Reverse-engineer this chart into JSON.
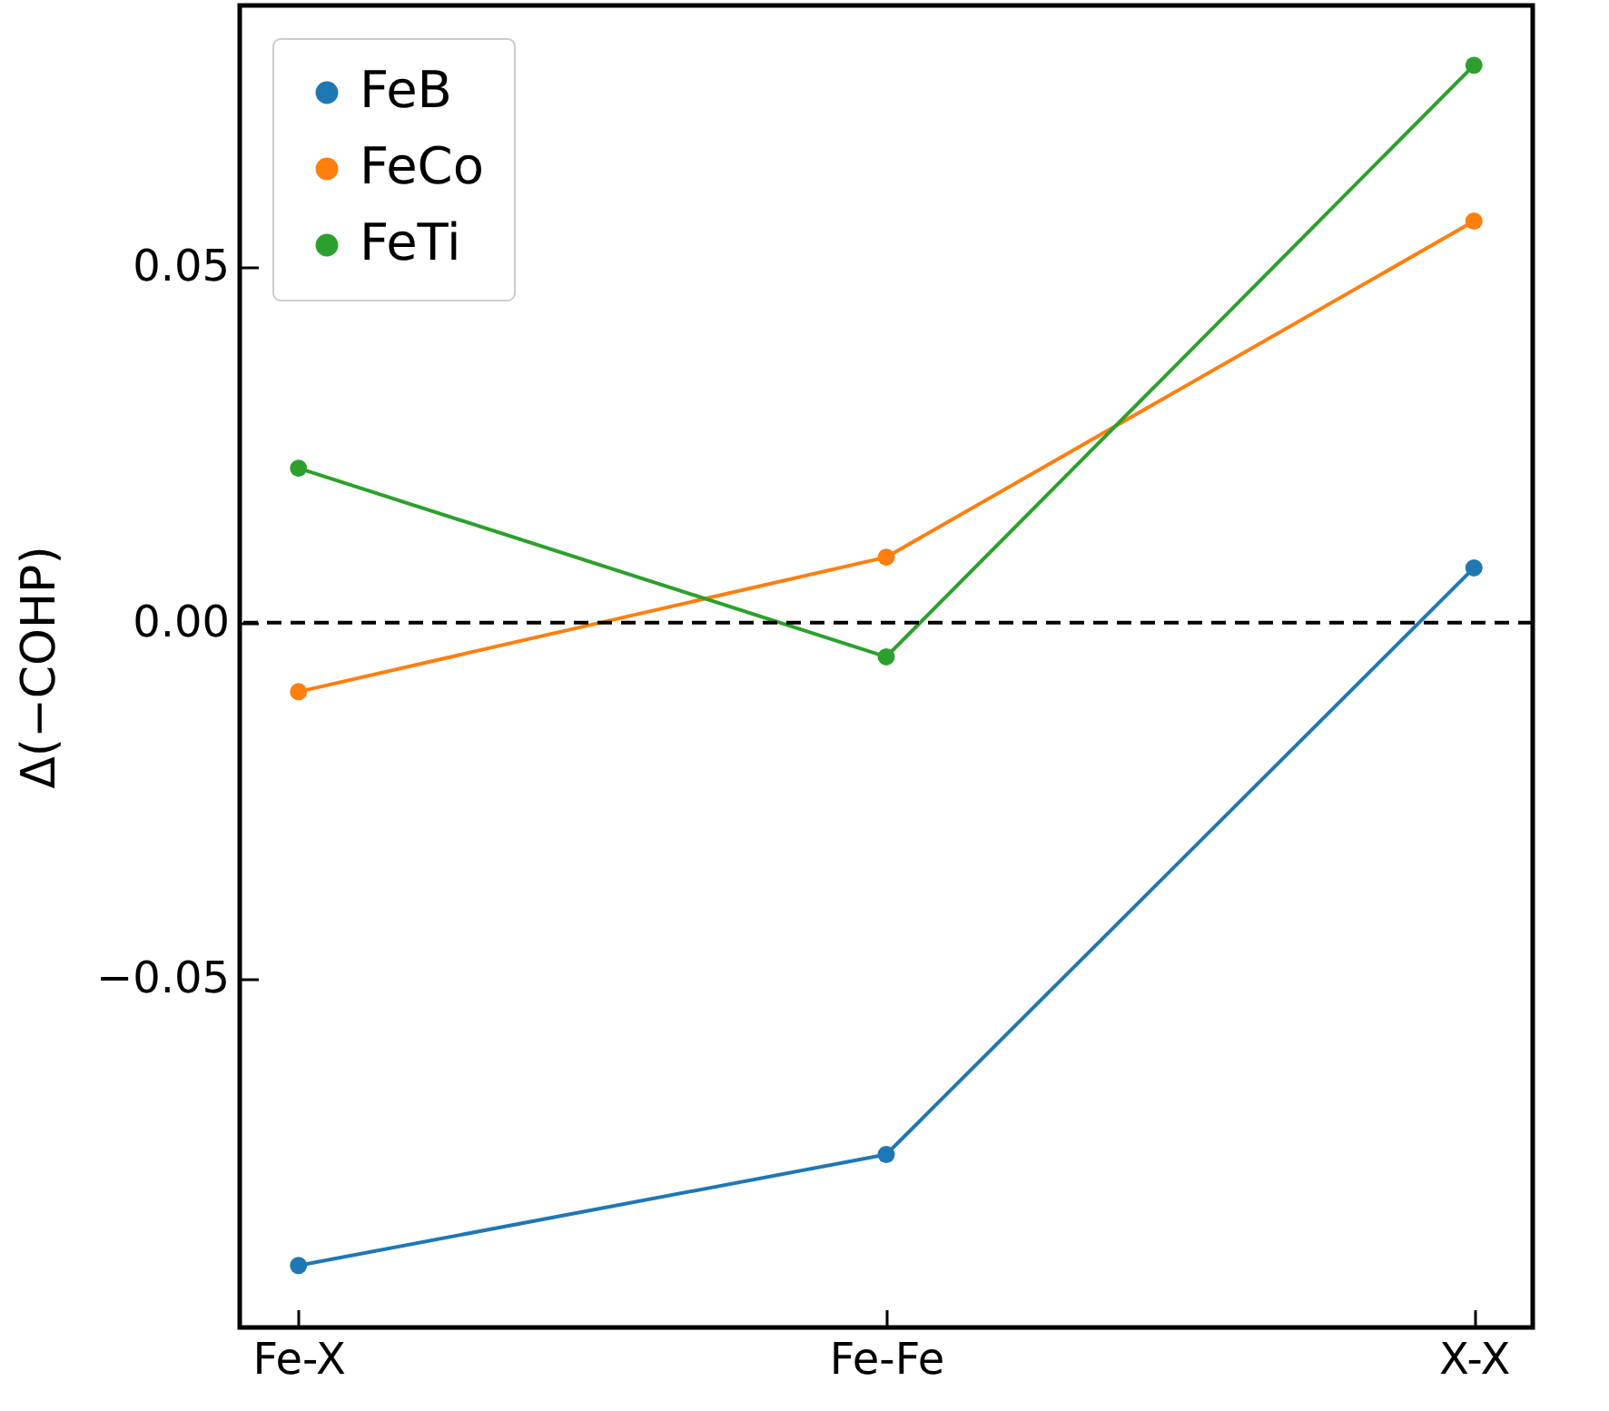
{
  "chart_data": {
    "type": "line",
    "ylabel": "Δ(−COHP)",
    "categories": [
      "Fe-X",
      "Fe-Fe",
      "X-X"
    ],
    "series": [
      {
        "name": "FeB",
        "color": "#1f77b4",
        "values": [
          -0.0903,
          -0.0747,
          0.0077
        ]
      },
      {
        "name": "FeCo",
        "color": "#ff7f0e",
        "values": [
          -0.0097,
          0.0092,
          0.0564
        ]
      },
      {
        "name": "FeTi",
        "color": "#2ca02c",
        "values": [
          0.0217,
          -0.0048,
          0.0783
        ]
      }
    ],
    "ylim": [
      -0.099,
      0.0867
    ],
    "yticks": [
      {
        "value": -0.05,
        "label": "−0.05"
      },
      {
        "value": 0,
        "label": "0.00"
      },
      0.05
    ],
    "ref_lines": [
      {
        "axis": "y",
        "value": 0,
        "color": "#000000",
        "line_style": "dashed"
      }
    ],
    "legend": "top left",
    "marker": "circle",
    "line_style": "solid",
    "grid": false
  }
}
